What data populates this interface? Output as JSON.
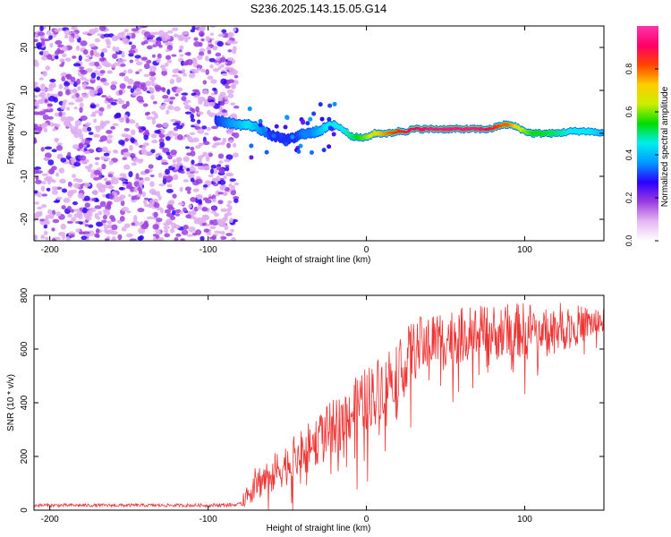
{
  "title": "S236.2025.143.15.05.G14",
  "chart_data": [
    {
      "type": "heatmap",
      "xlabel": "Height of straight line (km)",
      "ylabel": "Frequency (Hz)",
      "xlim": [
        -210,
        150
      ],
      "ylim": [
        -25,
        25
      ],
      "xticks": [
        -200,
        -100,
        0,
        100
      ],
      "yticks": [
        -20,
        -10,
        0,
        10,
        20
      ],
      "colorbar": {
        "label": "Normalized spectral amplitude",
        "range": [
          0,
          1
        ],
        "ticks": [
          0.0,
          0.2,
          0.4,
          0.6,
          0.8
        ],
        "tick_labels": [
          "0.0",
          "0.2",
          "0.4",
          "0.6",
          "0.8"
        ],
        "colors": [
          "#ffffff",
          "#e6b7f2",
          "#9a3de0",
          "#2c00ff",
          "#0099ff",
          "#00eeee",
          "#00dd00",
          "#ccee00",
          "#ffcc00",
          "#ff4400",
          "#ff0066",
          "#ff33aa"
        ]
      },
      "noise_region": {
        "x_range": [
          -210,
          -82
        ],
        "freq_range": [
          -25,
          25
        ],
        "max_amplitude": 0.15
      },
      "ridge": {
        "x": [
          -95,
          -88,
          -80,
          -75,
          -70,
          -65,
          -60,
          -55,
          -50,
          -45,
          -40,
          -35,
          -30,
          -25,
          -20,
          -15,
          -10,
          -5,
          0,
          5,
          10,
          15,
          20,
          25,
          30,
          40,
          50,
          60,
          70,
          78,
          82,
          86,
          90,
          95,
          100,
          105,
          110,
          120,
          130,
          140,
          150
        ],
        "freq": [
          3,
          2.5,
          2,
          2,
          1.5,
          0.5,
          -0.5,
          -1,
          -1.5,
          -1,
          0,
          0,
          0.5,
          1.5,
          2,
          1,
          -0.5,
          -1,
          -1,
          0,
          0,
          0,
          0.5,
          0.5,
          1,
          1,
          1,
          1,
          1,
          1,
          1.5,
          2,
          2,
          1.5,
          0.5,
          0,
          0,
          0,
          0.5,
          0.5,
          0
        ],
        "amplitude": [
          0.3,
          0.35,
          0.4,
          0.45,
          0.4,
          0.35,
          0.3,
          0.3,
          0.3,
          0.3,
          0.35,
          0.35,
          0.4,
          0.45,
          0.45,
          0.45,
          0.5,
          0.55,
          0.6,
          0.7,
          0.75,
          0.8,
          0.85,
          0.9,
          0.9,
          0.95,
          0.95,
          0.95,
          0.95,
          0.9,
          0.85,
          0.8,
          0.8,
          0.7,
          0.6,
          0.55,
          0.55,
          0.5,
          0.45,
          0.45,
          0.4
        ]
      }
    },
    {
      "type": "line",
      "xlabel": "Height of straight line (km)",
      "ylabel": "SNR (10 * v/v)",
      "xlim": [
        -210,
        150
      ],
      "ylim": [
        0,
        800
      ],
      "xticks": [
        -200,
        -100,
        0,
        100
      ],
      "yticks": [
        0,
        200,
        400,
        600,
        800
      ],
      "color": "#ee3333",
      "envelope": {
        "x": [
          -210,
          -150,
          -100,
          -80,
          -75,
          -70,
          -60,
          -50,
          -40,
          -30,
          -20,
          -10,
          0,
          10,
          20,
          30,
          40,
          60,
          80,
          100,
          120,
          150
        ],
        "mean": [
          18,
          18,
          18,
          20,
          45,
          80,
          110,
          150,
          190,
          240,
          280,
          330,
          380,
          430,
          500,
          560,
          600,
          620,
          630,
          640,
          650,
          690
        ],
        "spread": [
          12,
          12,
          12,
          15,
          50,
          80,
          90,
          100,
          110,
          120,
          130,
          140,
          150,
          150,
          150,
          140,
          140,
          130,
          130,
          130,
          120,
          60
        ]
      }
    }
  ]
}
